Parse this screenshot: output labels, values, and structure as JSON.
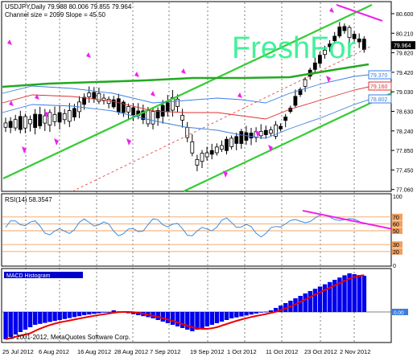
{
  "header": {
    "symbol_line": "USDJPY,Daily  79.988 80.006 79.855 79.964",
    "channel_line": "Channel size = 2099 Slope = 45.50"
  },
  "watermark": "FreshFor",
  "copyright": "© 2001-2012, MetaQuotes Software Corp.",
  "price_axis": {
    "ticks": [
      "80.600",
      "80.210",
      "79.820",
      "79.420",
      "79.030",
      "78.630",
      "78.240",
      "77.850",
      "77.450",
      "77.060"
    ],
    "current_price": "79.964",
    "badges": [
      {
        "label": "79.370",
        "color": "#3b7de0"
      },
      {
        "label": "79.160",
        "color": "#e03030"
      },
      {
        "label": "78.802",
        "color": "#3b7de0"
      }
    ]
  },
  "rsi": {
    "title": "RSI(14) 58.3547",
    "ticks": [
      "100",
      "70",
      "60",
      "50",
      "30",
      "20",
      "0"
    ],
    "levels": [
      70,
      60,
      50,
      30,
      20
    ]
  },
  "macd": {
    "title": "MACD Histogram",
    "zero_label": "0.00"
  },
  "time_axis": {
    "labels": [
      "25 Jul 2012",
      "6 Aug 2012",
      "16 Aug 2012",
      "28 Aug 2012",
      "7 Sep 2012",
      "19 Sep 2012",
      "1 Oct 2012",
      "11 Oct 2012",
      "23 Oct 2012",
      "2 Nov 2012"
    ]
  },
  "colors": {
    "candle": "#000000",
    "channel": "#33cc33",
    "ma_long": "#22aa22",
    "band_outer": "#3b7de0",
    "band_mid": "#e03030",
    "rsi_line": "#3b8de0",
    "rsi_levels": "#f0a060",
    "trend_line": "#ee22ee",
    "histogram": "#0000ee",
    "signal": "#ee0000",
    "watermark": "#22ee88"
  }
}
